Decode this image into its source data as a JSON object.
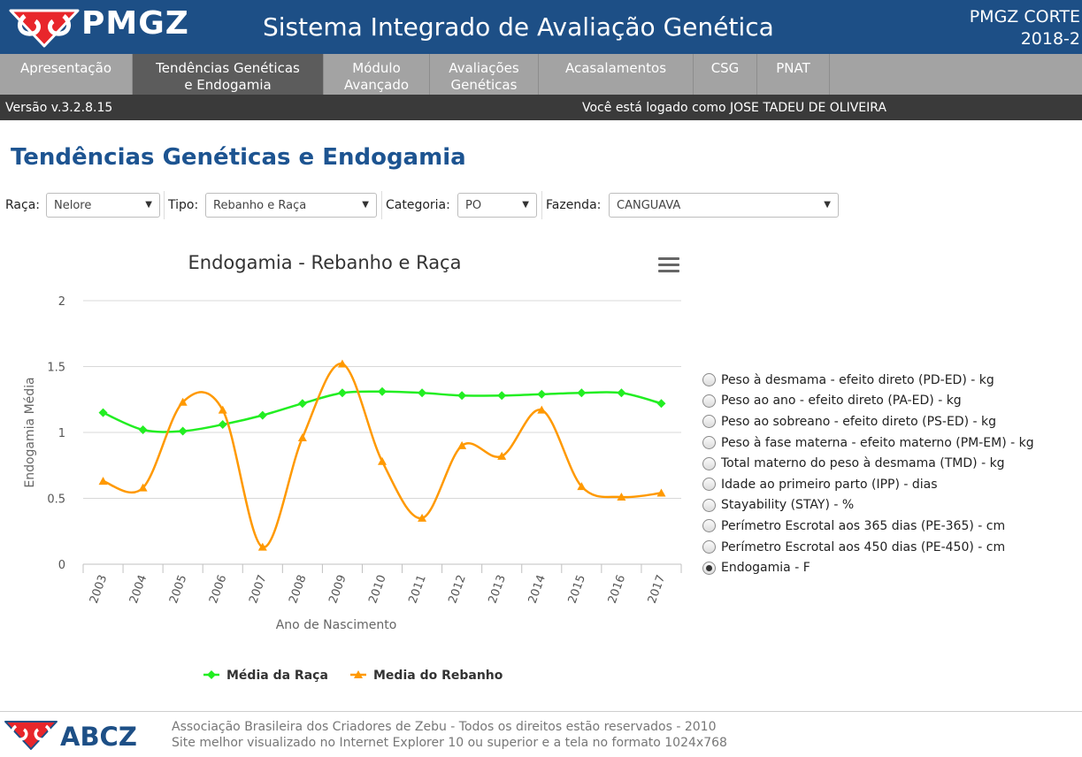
{
  "header": {
    "logo_text": "PMGZ",
    "title": "Sistema Integrado de Avaliação Genética",
    "edition_line1": "PMGZ CORTE",
    "edition_line2": "2018-2"
  },
  "nav": {
    "items": [
      {
        "line1": "Apresentação",
        "line2": ""
      },
      {
        "line1": "Tendências Genéticas",
        "line2": "e Endogamia"
      },
      {
        "line1": "Módulo",
        "line2": "Avançado"
      },
      {
        "line1": "Avaliações",
        "line2": "Genéticas"
      },
      {
        "line1": "Acasalamentos",
        "line2": ""
      },
      {
        "line1": "CSG",
        "line2": ""
      },
      {
        "line1": "PNAT",
        "line2": ""
      }
    ]
  },
  "status": {
    "version": "Versão v.3.2.8.15",
    "login": "Você está logado como JOSE TADEU DE OLIVEIRA"
  },
  "page_title": "Tendências Genéticas e Endogamia",
  "filters": {
    "raca": {
      "label": "Raça:",
      "value": "Nelore"
    },
    "tipo": {
      "label": "Tipo:",
      "value": "Rebanho e Raça"
    },
    "categoria": {
      "label": "Categoria:",
      "value": "PO"
    },
    "fazenda": {
      "label": "Fazenda:",
      "value": "CANGUAVA"
    }
  },
  "icons": {
    "dropdown": "▼",
    "menu": "hamburger-menu"
  },
  "colors": {
    "header": "#1d4f86",
    "raca_series": "#22ee22",
    "rebanho_series": "#ff9900",
    "title": "#1d5491"
  },
  "chart_data": {
    "type": "line",
    "title": "Endogamia - Rebanho e Raça",
    "xlabel": "Ano de Nascimento",
    "ylabel": "Endogamia Média",
    "ylim": [
      0,
      2
    ],
    "yticks": [
      "0",
      "0.5",
      "1",
      "1.5",
      "2"
    ],
    "grid": true,
    "legend": "bottom",
    "categories": [
      "2003",
      "2004",
      "2005",
      "2006",
      "2007",
      "2008",
      "2009",
      "2010",
      "2011",
      "2012",
      "2013",
      "2014",
      "2015",
      "2016",
      "2017"
    ],
    "series": [
      {
        "name": "Média da Raça",
        "color": "#22ee22",
        "marker": "diamond",
        "values": [
          1.15,
          1.02,
          1.01,
          1.06,
          1.13,
          1.22,
          1.3,
          1.31,
          1.3,
          1.28,
          1.28,
          1.29,
          1.3,
          1.3,
          1.22
        ]
      },
      {
        "name": "Media do Rebanho",
        "color": "#ff9900",
        "marker": "triangle",
        "values": [
          0.63,
          0.58,
          1.23,
          1.17,
          0.13,
          0.96,
          1.52,
          0.78,
          0.35,
          0.9,
          0.82,
          1.17,
          0.59,
          0.51,
          0.54
        ]
      }
    ]
  },
  "traits": [
    {
      "label": "Peso à desmama - efeito direto (PD-ED) - kg",
      "checked": false
    },
    {
      "label": "Peso ao ano - efeito direto (PA-ED) - kg",
      "checked": false
    },
    {
      "label": "Peso ao sobreano - efeito direto (PS-ED) - kg",
      "checked": false
    },
    {
      "label": "Peso à fase materna - efeito materno (PM-EM) - kg",
      "checked": false
    },
    {
      "label": "Total materno do peso à desmama (TMD) - kg",
      "checked": false
    },
    {
      "label": "Idade ao primeiro parto (IPP) - dias",
      "checked": false
    },
    {
      "label": "Stayability (STAY) - %",
      "checked": false
    },
    {
      "label": "Perímetro Escrotal aos 365 dias (PE-365) - cm",
      "checked": false
    },
    {
      "label": "Perímetro Escrotal aos 450 dias (PE-450) - cm",
      "checked": false
    },
    {
      "label": "Endogamia - F",
      "checked": true
    }
  ],
  "footer": {
    "logo_text": "ABCZ",
    "line1": "Associação Brasileira dos Criadores de Zebu - Todos os direitos estão reservados - 2010",
    "line2": "Site melhor visualizado no Internet Explorer 10 ou superior e a tela no formato 1024x768"
  }
}
